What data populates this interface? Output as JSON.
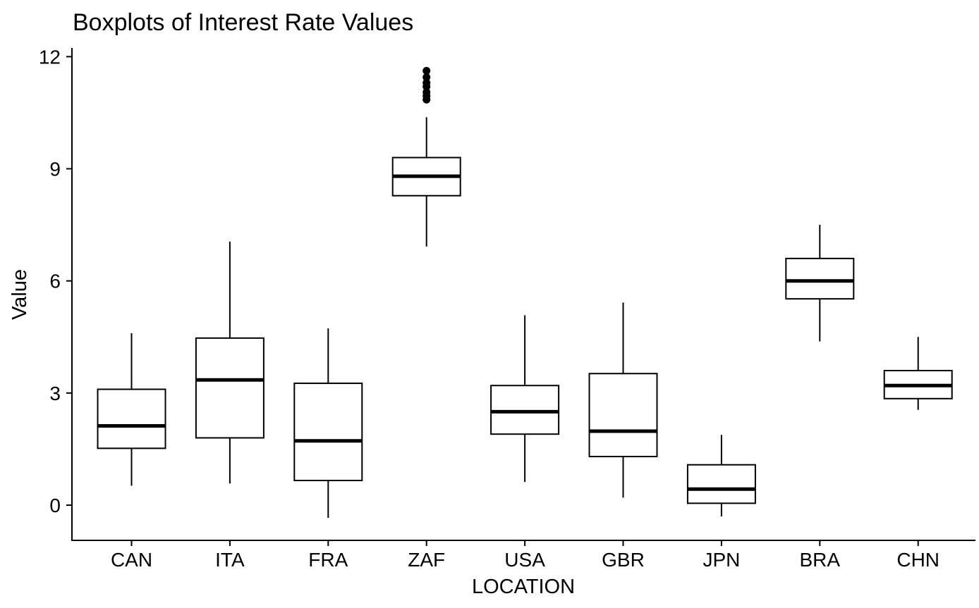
{
  "chart_data": {
    "type": "boxplot",
    "title": "Boxplots of Interest Rate Values",
    "xlabel": "LOCATION",
    "ylabel": "Value",
    "ylim": [
      -0.9,
      12.25
    ],
    "yticks": [
      0,
      3,
      6,
      9,
      12
    ],
    "grid": false,
    "legend": "none",
    "categories": [
      "CAN",
      "ITA",
      "FRA",
      "ZAF",
      "USA",
      "GBR",
      "JPN",
      "BRA",
      "CHN"
    ],
    "boxes": [
      {
        "category": "CAN",
        "whisker_low": 0.52,
        "q1": 1.52,
        "median": 2.12,
        "q3": 3.1,
        "whisker_high": 4.6,
        "outliers": []
      },
      {
        "category": "ITA",
        "whisker_low": 0.58,
        "q1": 1.8,
        "median": 3.35,
        "q3": 4.47,
        "whisker_high": 7.05,
        "outliers": []
      },
      {
        "category": "FRA",
        "whisker_low": -0.34,
        "q1": 0.66,
        "median": 1.72,
        "q3": 3.26,
        "whisker_high": 4.73,
        "outliers": []
      },
      {
        "category": "ZAF",
        "whisker_low": 6.92,
        "q1": 8.28,
        "median": 8.8,
        "q3": 9.3,
        "whisker_high": 10.38,
        "outliers": [
          10.85,
          10.95,
          11.05,
          11.2,
          11.3,
          11.45,
          11.62
        ]
      },
      {
        "category": "USA",
        "whisker_low": 0.62,
        "q1": 1.9,
        "median": 2.5,
        "q3": 3.2,
        "whisker_high": 5.08,
        "outliers": []
      },
      {
        "category": "GBR",
        "whisker_low": 0.2,
        "q1": 1.3,
        "median": 1.98,
        "q3": 3.52,
        "whisker_high": 5.42,
        "outliers": []
      },
      {
        "category": "JPN",
        "whisker_low": -0.3,
        "q1": 0.05,
        "median": 0.43,
        "q3": 1.08,
        "whisker_high": 1.88,
        "outliers": []
      },
      {
        "category": "BRA",
        "whisker_low": 4.38,
        "q1": 5.52,
        "median": 6.0,
        "q3": 6.6,
        "whisker_high": 7.5,
        "outliers": []
      },
      {
        "category": "CHN",
        "whisker_low": 2.55,
        "q1": 2.85,
        "median": 3.2,
        "q3": 3.6,
        "whisker_high": 4.5,
        "outliers": []
      }
    ]
  }
}
